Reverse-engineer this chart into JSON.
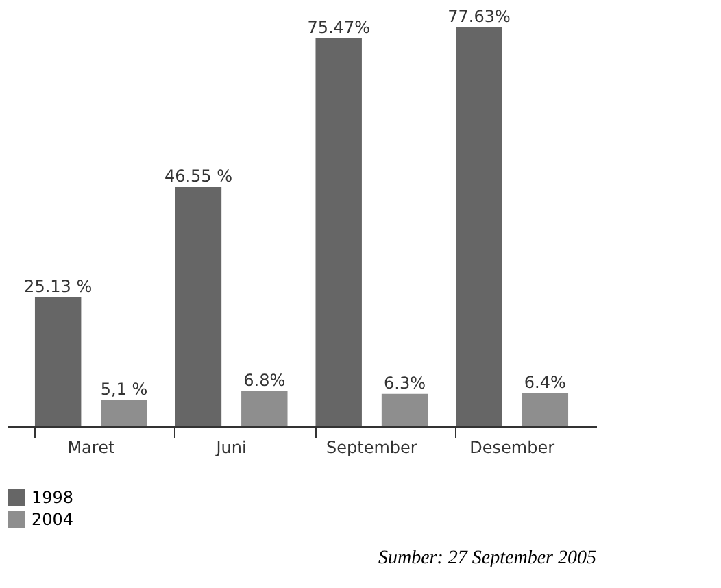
{
  "chart_data": {
    "type": "bar",
    "categories": [
      "Maret",
      "Juni",
      "September",
      "Desember"
    ],
    "series": [
      {
        "name": "1998",
        "color": "#666666",
        "values": [
          25.13,
          46.55,
          75.47,
          77.63
        ],
        "value_labels": [
          "25.13 %",
          "46.55 %",
          "75.47%",
          "77.63%"
        ]
      },
      {
        "name": "2004",
        "color": "#8e8e8e",
        "values": [
          5.1,
          6.8,
          6.3,
          6.4
        ],
        "value_labels": [
          "5,1 %",
          "6.8%",
          "6.3%",
          "6.4%"
        ]
      }
    ],
    "legend": "bottom left",
    "grid": false,
    "annotations": [
      "Sumber: 27 September 2005"
    ]
  }
}
